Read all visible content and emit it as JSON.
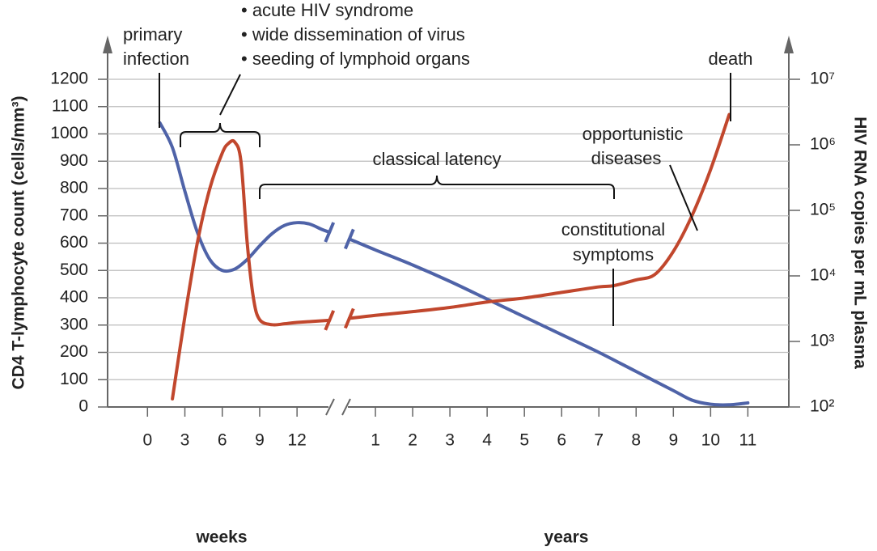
{
  "chart_data": {
    "type": "line",
    "ylabel": "CD4 T-lymphocyte count (cells/mm³)",
    "y2label": "HIV RNA copies per mL plasma",
    "ylim": [
      0,
      1200
    ],
    "yticks": [
      0,
      100,
      200,
      300,
      400,
      500,
      600,
      700,
      800,
      900,
      1000,
      1100,
      1200
    ],
    "y2lim": [
      100,
      10000000
    ],
    "y2scale": "log",
    "y2ticks": [
      {
        "value": 100,
        "label": "10²"
      },
      {
        "value": 1000,
        "label": "10³"
      },
      {
        "value": 10000,
        "label": "10⁴"
      },
      {
        "value": 100000,
        "label": "10⁵"
      },
      {
        "value": 1000000,
        "label": "10⁶"
      },
      {
        "value": 10000000,
        "label": "10⁷"
      }
    ],
    "grid": true,
    "x_axes": [
      {
        "label": "weeks",
        "xlim": [
          -3.2,
          15.3
        ],
        "xticks": [
          0,
          3,
          6,
          9,
          12
        ]
      },
      {
        "label": "years",
        "xlim": [
          0,
          12.1
        ],
        "xticks": [
          1,
          2,
          3,
          4,
          5,
          6,
          7,
          8,
          9,
          10,
          11
        ]
      }
    ],
    "series": [
      {
        "color": "#4f63a8",
        "segments": [
          {
            "x": [
              1,
              2,
              3,
              4,
              5,
              6,
              7,
              8,
              9,
              10,
              11,
              12,
              13,
              14,
              14.6
            ],
            "values": [
              1040,
              950,
              790,
              640,
              540,
              500,
              505,
              540,
              590,
              635,
              665,
              675,
              670,
              650,
              640
            ]
          },
          {
            "x": [
              0.3,
              1,
              2,
              3,
              4,
              5,
              6,
              7,
              8,
              9,
              9.5,
              10,
              10.5,
              11
            ],
            "values": [
              615,
              575,
              520,
              460,
              395,
              330,
              265,
              200,
              130,
              60,
              25,
              10,
              8,
              15
            ]
          }
        ]
      },
      {
        "color": "#c1472d",
        "axis": "y2",
        "segments": [
          {
            "x": [
              2,
              3,
              4,
              5,
              6,
              6.5,
              7,
              7.5,
              8,
              8.5,
              9,
              10,
              11,
              12,
              14.6
            ],
            "values": [
              133,
              2400,
              32000,
              215000,
              750000,
              1050000,
              1100000,
              560000,
              32000,
              4600,
              2150,
              1800,
              1860,
              1950,
              2100
            ]
          },
          {
            "x": [
              0.3,
              1,
              2,
              3,
              4,
              5,
              6,
              7,
              7.4,
              8,
              8.5,
              9,
              9.5,
              10,
              10.5
            ],
            "values": [
              2250,
              2500,
              2850,
              3300,
              4000,
              4600,
              5600,
              6800,
              7100,
              8700,
              10500,
              23700,
              83000,
              420000,
              2900000
            ]
          }
        ]
      }
    ],
    "annotations": {
      "primary_infection": [
        "primary",
        "infection"
      ],
      "acute_phase": [
        "• acute HIV syndrome",
        "• wide dissemination of virus",
        "• seeding of lymphoid organs"
      ],
      "classical_latency": "classical latency",
      "opportunistic_diseases": [
        "opportunistic",
        "diseases"
      ],
      "constitutional_symptoms": [
        "constitutional",
        "symptoms"
      ],
      "death": "death"
    }
  }
}
